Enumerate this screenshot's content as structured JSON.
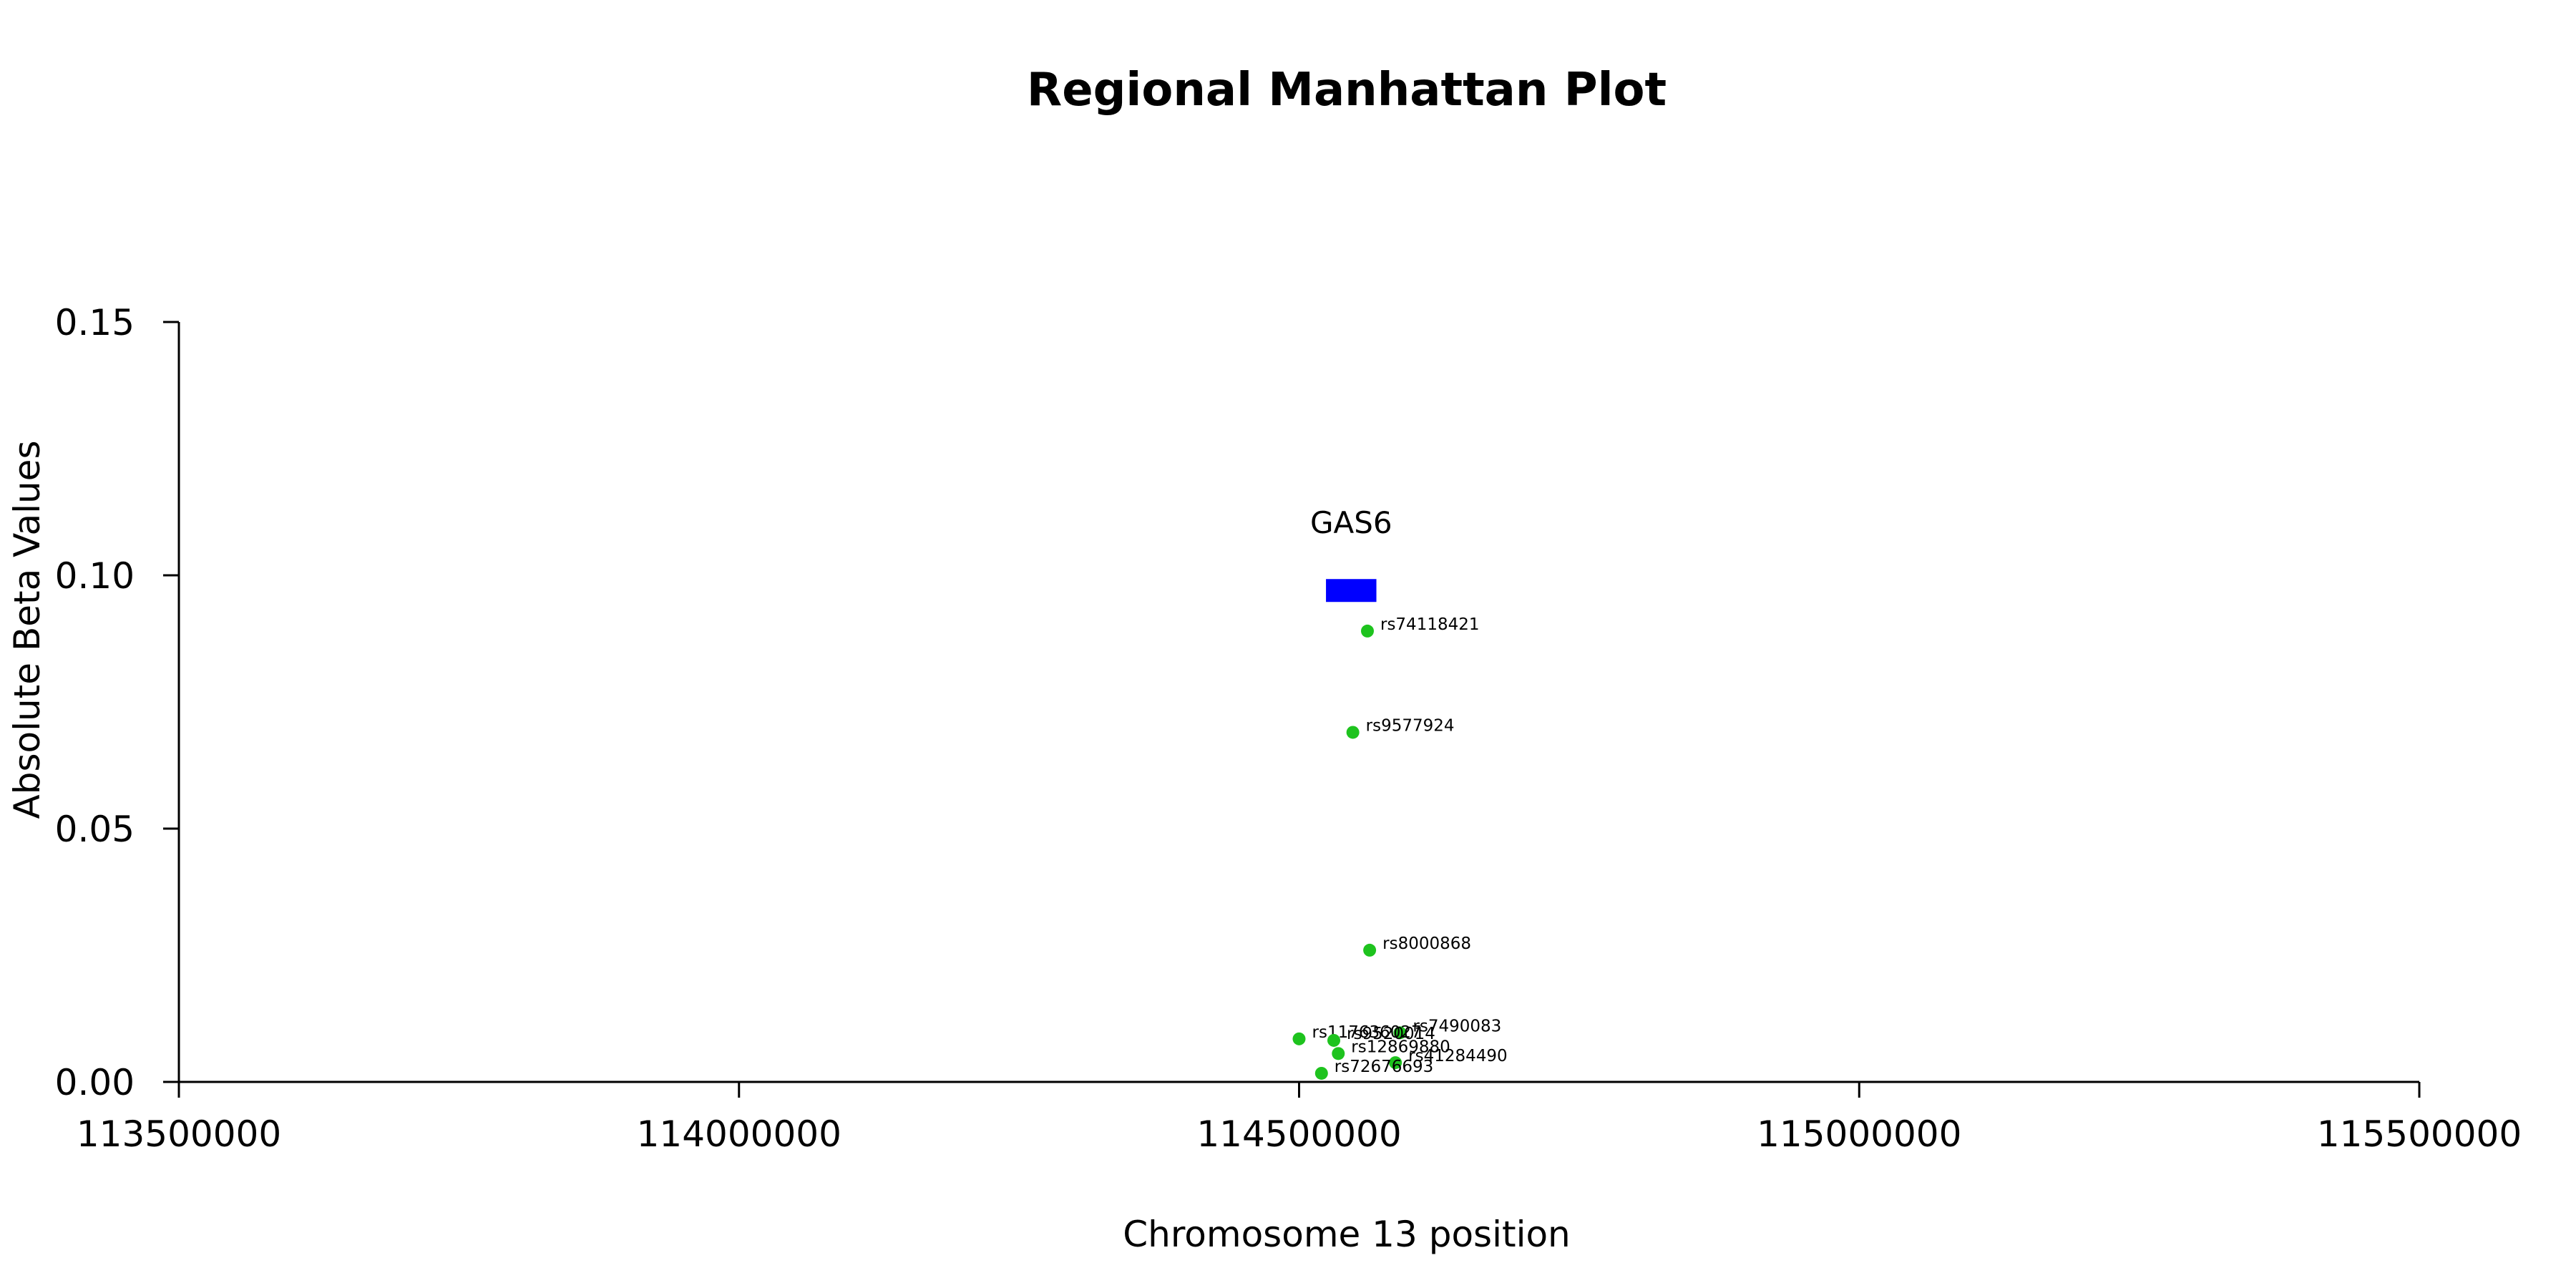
{
  "chart_data": {
    "type": "scatter",
    "title": "Regional Manhattan Plot",
    "xlabel": "Chromosome 13 position",
    "ylabel": "Absolute Beta Values",
    "xlim": [
      113500000,
      115500000
    ],
    "ylim": [
      0,
      0.15
    ],
    "xticks": [
      113500000,
      114000000,
      114500000,
      115000000,
      115500000
    ],
    "xtick_labels": [
      "113500000",
      "114000000",
      "114500000",
      "115000000",
      "115500000"
    ],
    "yticks": [
      0,
      0.05,
      0.1,
      0.15
    ],
    "ytick_labels": [
      "0.00",
      "0.05",
      "0.10",
      "0.15"
    ],
    "grid": false,
    "point_color": "#1ec31e",
    "gene_color": "#0000ff",
    "genes": [
      {
        "name": "GAS6",
        "start": 114524000,
        "end": 114569000,
        "y": 0.097
      }
    ],
    "points": [
      {
        "label": "rs74118421",
        "x": 114561000,
        "y": 0.089
      },
      {
        "label": "rs9577924",
        "x": 114548000,
        "y": 0.069
      },
      {
        "label": "rs8000868",
        "x": 114563000,
        "y": 0.026
      },
      {
        "label": "rs7490083",
        "x": 114590000,
        "y": 0.0097
      },
      {
        "label": "rs117636027",
        "x": 114500000,
        "y": 0.0085
      },
      {
        "label": "rs9520014",
        "x": 114531000,
        "y": 0.0082
      },
      {
        "label": "rs12869880",
        "x": 114535000,
        "y": 0.0056
      },
      {
        "label": "rs41284490",
        "x": 114586000,
        "y": 0.0038
      },
      {
        "label": "rs72676693",
        "x": 114520000,
        "y": 0.0017
      }
    ]
  }
}
